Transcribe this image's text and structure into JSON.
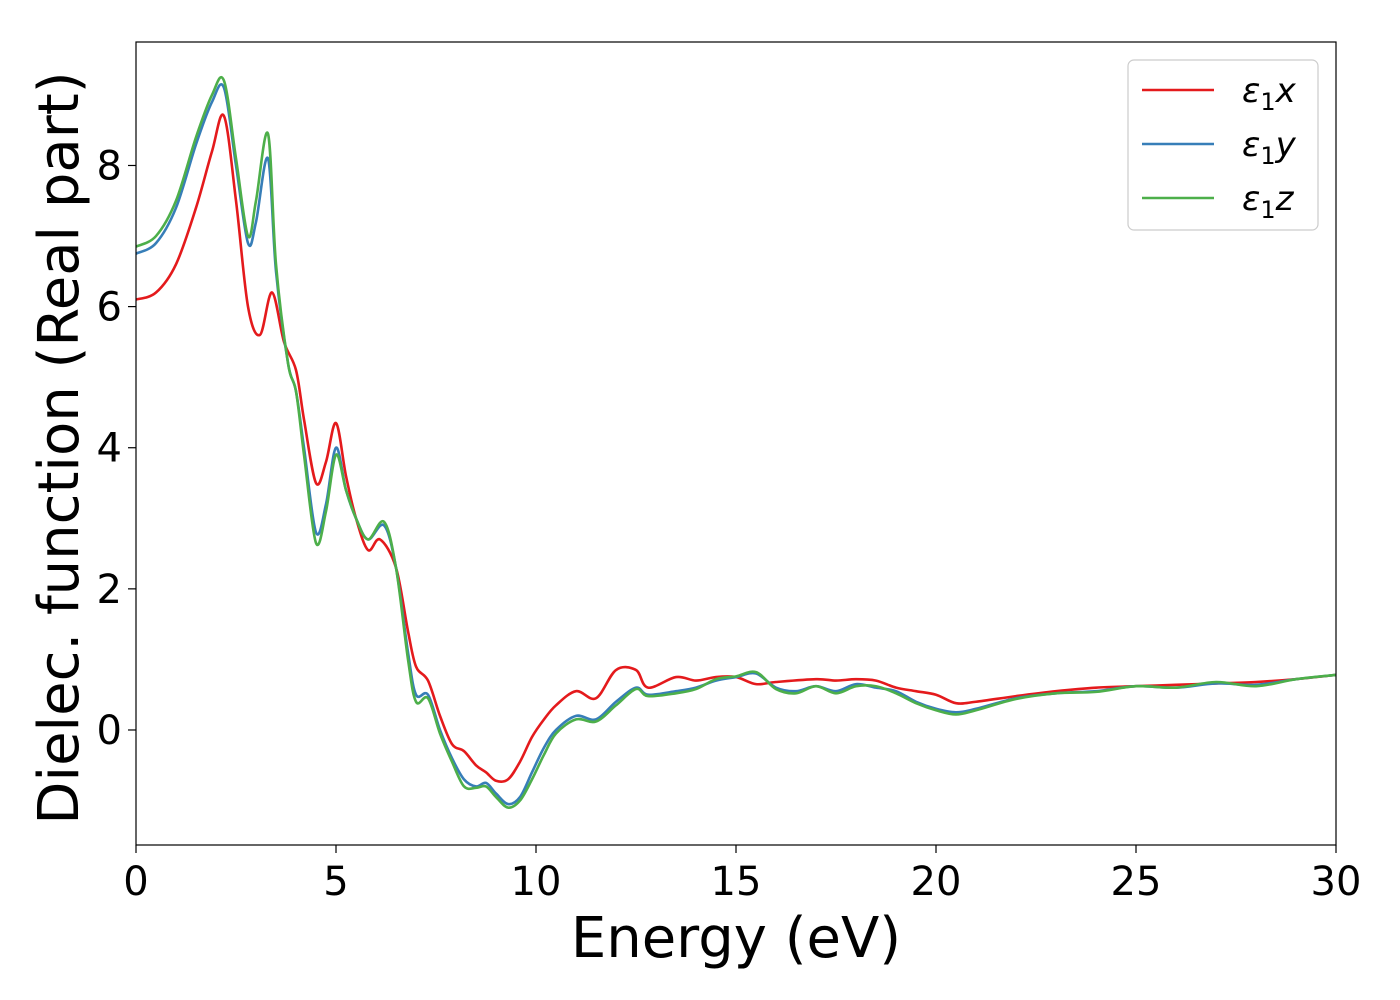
{
  "chart_data": {
    "type": "line",
    "title": "",
    "xlabel": "Energy (eV)",
    "ylabel": "Dielec. function (Real part)",
    "xlim": [
      0,
      30
    ],
    "ylim": [
      -1.63,
      9.75
    ],
    "xticks": [
      0,
      5,
      10,
      15,
      20,
      25,
      30
    ],
    "xtick_labels": [
      "0",
      "5",
      "10",
      "15",
      "20",
      "25",
      "30"
    ],
    "yticks": [
      0,
      2,
      4,
      6,
      8
    ],
    "ytick_labels": [
      "0",
      "2",
      "4",
      "6",
      "8"
    ],
    "grid": false,
    "legend_position": "top-right",
    "series": [
      {
        "name": "ε₁x",
        "legend_main": "ε",
        "legend_sub": "1",
        "legend_var": "x",
        "color": "#e41a1c",
        "x": [
          0,
          0.5,
          1,
          1.5,
          1.9,
          2.2,
          2.5,
          2.8,
          3.1,
          3.4,
          3.7,
          4.0,
          4.2,
          4.5,
          4.75,
          5.0,
          5.25,
          5.5,
          5.8,
          6.1,
          6.5,
          6.8,
          7.0,
          7.3,
          7.6,
          7.9,
          8.2,
          8.5,
          8.75,
          9.0,
          9.3,
          9.6,
          9.9,
          10.2,
          10.5,
          11.0,
          11.5,
          12.0,
          12.5,
          12.8,
          13.5,
          14.0,
          14.5,
          15.0,
          15.5,
          16.0,
          17.0,
          17.5,
          18.0,
          18.5,
          19.0,
          19.5,
          20.0,
          20.5,
          21.0,
          22.0,
          23.0,
          24.0,
          25.0,
          26.0,
          27.0,
          28.0,
          29.0,
          30.0
        ],
        "y": [
          6.1,
          6.2,
          6.6,
          7.4,
          8.2,
          8.7,
          7.5,
          6.0,
          5.6,
          6.2,
          5.5,
          5.1,
          4.4,
          3.5,
          3.8,
          4.35,
          3.6,
          3.0,
          2.55,
          2.7,
          2.3,
          1.4,
          0.9,
          0.7,
          0.2,
          -0.2,
          -0.3,
          -0.5,
          -0.6,
          -0.72,
          -0.7,
          -0.45,
          -0.1,
          0.15,
          0.35,
          0.55,
          0.45,
          0.85,
          0.85,
          0.6,
          0.75,
          0.7,
          0.75,
          0.75,
          0.65,
          0.68,
          0.72,
          0.7,
          0.72,
          0.7,
          0.6,
          0.55,
          0.5,
          0.38,
          0.4,
          0.48,
          0.55,
          0.6,
          0.62,
          0.64,
          0.66,
          0.68,
          0.72,
          0.78
        ]
      },
      {
        "name": "ε₁y",
        "legend_main": "ε",
        "legend_sub": "1",
        "legend_var": "y",
        "color": "#377eb8",
        "x": [
          0,
          0.5,
          1,
          1.5,
          1.9,
          2.2,
          2.5,
          2.8,
          3.0,
          3.3,
          3.5,
          3.8,
          4.0,
          4.2,
          4.5,
          4.75,
          5.0,
          5.25,
          5.5,
          5.8,
          6.2,
          6.5,
          6.8,
          7.0,
          7.3,
          7.6,
          7.9,
          8.2,
          8.5,
          8.75,
          9.0,
          9.3,
          9.6,
          9.9,
          10.2,
          10.5,
          11.0,
          11.5,
          12.0,
          12.5,
          12.8,
          13.5,
          14.0,
          14.5,
          15.0,
          15.5,
          16.0,
          16.5,
          17.0,
          17.5,
          18.0,
          18.5,
          19.0,
          19.5,
          20.0,
          20.5,
          21.0,
          22.0,
          23.0,
          24.0,
          25.0,
          26.0,
          27.0,
          28.0,
          29.0,
          30.0
        ],
        "y": [
          6.75,
          6.9,
          7.4,
          8.3,
          8.9,
          9.1,
          8.0,
          6.9,
          7.2,
          8.1,
          6.5,
          5.2,
          4.8,
          4.0,
          2.8,
          3.2,
          4.0,
          3.4,
          3.0,
          2.7,
          2.9,
          2.3,
          1.1,
          0.5,
          0.5,
          0.0,
          -0.4,
          -0.7,
          -0.8,
          -0.75,
          -0.9,
          -1.05,
          -0.95,
          -0.6,
          -0.25,
          0.0,
          0.2,
          0.15,
          0.4,
          0.6,
          0.5,
          0.55,
          0.6,
          0.7,
          0.75,
          0.8,
          0.6,
          0.55,
          0.62,
          0.55,
          0.65,
          0.6,
          0.55,
          0.4,
          0.3,
          0.25,
          0.3,
          0.45,
          0.52,
          0.55,
          0.62,
          0.6,
          0.66,
          0.64,
          0.72,
          0.78
        ]
      },
      {
        "name": "ε₁z",
        "legend_main": "ε",
        "legend_sub": "1",
        "legend_var": "z",
        "color": "#4daf4a",
        "x": [
          0,
          0.5,
          1,
          1.5,
          1.9,
          2.2,
          2.5,
          2.8,
          3.0,
          3.3,
          3.5,
          3.8,
          4.0,
          4.2,
          4.5,
          4.75,
          5.0,
          5.25,
          5.5,
          5.8,
          6.2,
          6.5,
          6.8,
          7.0,
          7.3,
          7.6,
          7.9,
          8.2,
          8.5,
          8.75,
          9.0,
          9.3,
          9.6,
          9.9,
          10.2,
          10.5,
          11.0,
          11.5,
          12.0,
          12.5,
          12.8,
          13.5,
          14.0,
          14.5,
          15.0,
          15.5,
          16.0,
          16.5,
          17.0,
          17.5,
          18.0,
          18.5,
          19.0,
          19.5,
          20.0,
          20.5,
          21.0,
          22.0,
          23.0,
          24.0,
          25.0,
          26.0,
          27.0,
          28.0,
          29.0,
          30.0
        ],
        "y": [
          6.85,
          7.0,
          7.5,
          8.4,
          9.0,
          9.2,
          8.1,
          7.0,
          7.5,
          8.45,
          6.6,
          5.2,
          4.8,
          3.9,
          2.65,
          3.1,
          3.9,
          3.4,
          3.0,
          2.7,
          2.95,
          2.3,
          1.0,
          0.4,
          0.45,
          -0.05,
          -0.45,
          -0.8,
          -0.82,
          -0.8,
          -0.95,
          -1.1,
          -1.0,
          -0.7,
          -0.35,
          -0.05,
          0.15,
          0.12,
          0.35,
          0.58,
          0.48,
          0.52,
          0.58,
          0.72,
          0.76,
          0.82,
          0.58,
          0.52,
          0.62,
          0.52,
          0.62,
          0.62,
          0.52,
          0.38,
          0.28,
          0.22,
          0.28,
          0.44,
          0.52,
          0.54,
          0.62,
          0.6,
          0.68,
          0.62,
          0.72,
          0.78
        ]
      }
    ]
  }
}
